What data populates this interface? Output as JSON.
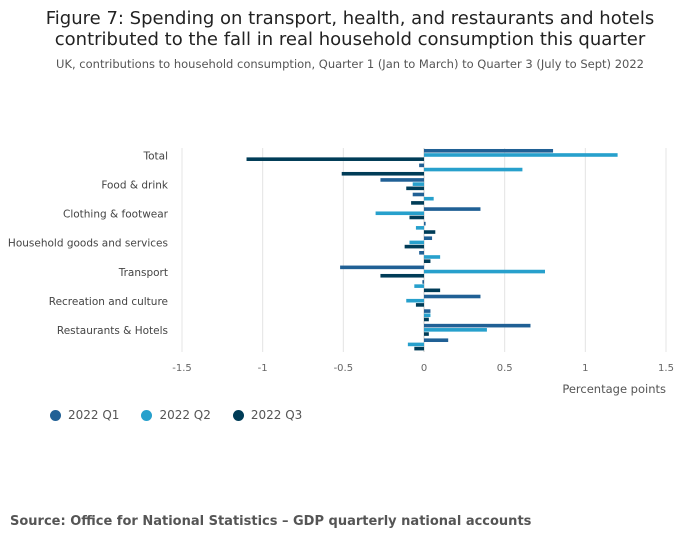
{
  "title_line1": "Figure 7: Spending on transport, health, and restaurants and hotels",
  "title_line2": "contributed to the fall in real household consumption this quarter",
  "subtitle": "UK, contributions to household consumption, Quarter 1 (Jan to March) to Quarter 3 (July to Sept) 2022",
  "source": "Source: Office for National Statistics – GDP quarterly national accounts",
  "legend": [
    {
      "label": "2022 Q1",
      "color": "#206095"
    },
    {
      "label": "2022 Q2",
      "color": "#27a0cc"
    },
    {
      "label": "2022 Q3",
      "color": "#003c57"
    }
  ],
  "chart_data": {
    "type": "bar",
    "orientation": "horizontal",
    "xlabel": "Percentage points",
    "xlim": [
      -1.5,
      1.5
    ],
    "xticks": [
      "-1.5",
      "-1",
      "-0.5",
      "0",
      "0.5",
      "1",
      "1.5"
    ],
    "xtick_values": [
      -1.5,
      -1,
      -0.5,
      0,
      0.5,
      1,
      1.5
    ],
    "grid": true,
    "legend_position": "bottom-left",
    "categories": [
      "Total",
      "",
      "Food & drink",
      "",
      "Clothing & footwear",
      "",
      "Household goods and services",
      "",
      "Transport",
      "",
      "Recreation and culture",
      "",
      "Restaurants & Hotels",
      ""
    ],
    "series": [
      {
        "name": "2022 Q1",
        "color": "#206095",
        "values": [
          0.8,
          -0.03,
          -0.27,
          -0.07,
          0.35,
          0.01,
          0.05,
          -0.03,
          -0.52,
          -0.01,
          0.35,
          0.04,
          0.66,
          0.15
        ]
      },
      {
        "name": "2022 Q2",
        "color": "#27a0cc",
        "values": [
          1.2,
          0.61,
          -0.07,
          0.06,
          -0.3,
          -0.05,
          -0.09,
          0.1,
          0.75,
          -0.06,
          -0.11,
          0.04,
          0.39,
          -0.1
        ]
      },
      {
        "name": "2022 Q3",
        "color": "#003c57",
        "values": [
          -1.1,
          -0.51,
          -0.11,
          -0.08,
          -0.09,
          0.07,
          -0.12,
          0.04,
          -0.27,
          0.1,
          -0.05,
          0.03,
          0.03,
          -0.06
        ]
      }
    ]
  }
}
